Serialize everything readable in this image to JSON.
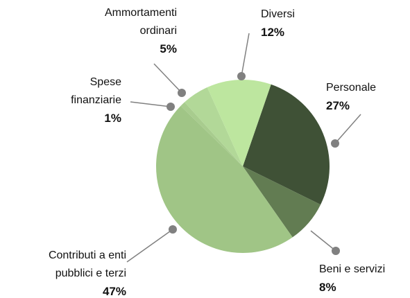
{
  "chart_data": {
    "type": "pie",
    "categories": [
      "Personale",
      "Beni e servizi",
      "Contributi a enti pubblici e terzi",
      "Spese finanziarie",
      "Ammortamenti ordinari",
      "Diversi"
    ],
    "values": [
      27,
      8,
      47,
      1,
      5,
      12
    ],
    "value_labels": [
      "27%",
      "8%",
      "47%",
      "1%",
      "5%",
      "12%"
    ],
    "colors": [
      "#3f5136",
      "#627c52",
      "#a0c586",
      "#a8cc8e",
      "#b2d898",
      "#bde69f"
    ]
  }
}
